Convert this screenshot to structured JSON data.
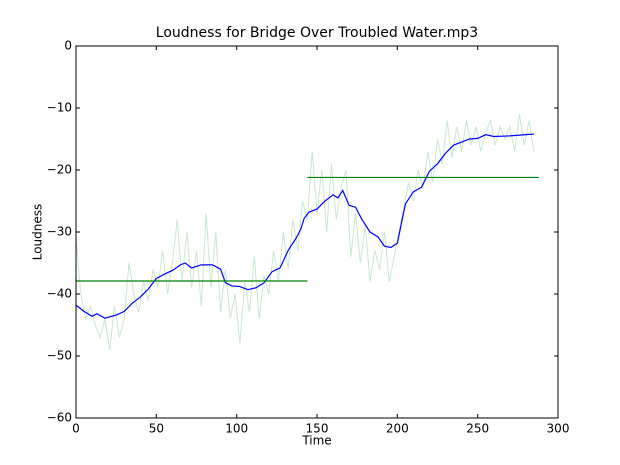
{
  "chart_data": {
    "type": "line",
    "title": "Loudness for Bridge Over Troubled Water.mp3",
    "x_label": "Time",
    "y_label": "Loudness",
    "xlim": [
      0,
      300
    ],
    "xticks": [
      0,
      50,
      100,
      150,
      200,
      250,
      300
    ],
    "ylim": [
      -60,
      0
    ],
    "yticks": [
      {
        "value": -60,
        "label": "−60"
      },
      {
        "value": -50,
        "label": "−50"
      },
      {
        "value": -40,
        "label": "−40"
      },
      {
        "value": -30,
        "label": "−30"
      },
      {
        "value": -20,
        "label": "−20"
      },
      {
        "value": -10,
        "label": "−10"
      },
      0
    ],
    "grid": false,
    "series": [
      {
        "color": "#c8e8cf",
        "x": [
          0,
          3,
          6,
          9,
          12,
          15,
          18,
          21,
          24,
          27,
          30,
          33,
          36,
          39,
          42,
          45,
          48,
          51,
          54,
          57,
          60,
          63,
          66,
          69,
          72,
          75,
          78,
          81,
          84,
          87,
          90,
          93,
          96,
          99,
          102,
          105,
          108,
          111,
          114,
          117,
          120,
          123,
          126,
          129,
          132,
          135,
          138,
          141,
          144,
          147,
          150,
          153,
          156,
          159,
          162,
          165,
          168,
          171,
          174,
          177,
          180,
          183,
          186,
          189,
          192,
          195,
          198,
          201,
          204,
          207,
          210,
          213,
          216,
          219,
          222,
          225,
          228,
          231,
          234,
          237,
          240,
          243,
          246,
          249,
          252,
          255,
          258,
          261,
          264,
          267,
          270,
          273,
          276,
          279,
          282,
          285
        ],
        "values": [
          -31,
          -40,
          -44,
          -42,
          -45,
          -47,
          -44,
          -49,
          -42,
          -47,
          -44,
          -35,
          -40,
          -43,
          -38,
          -41,
          -36,
          -39,
          -33,
          -40,
          -35,
          -28,
          -38,
          -30,
          -39,
          -33,
          -42,
          -27,
          -39,
          -30,
          -43,
          -36,
          -44,
          -40,
          -48,
          -38,
          -43,
          -34,
          -44,
          -37,
          -40,
          -33,
          -38,
          -30,
          -36,
          -28,
          -33,
          -25,
          -28,
          -17,
          -27,
          -20,
          -30,
          -19,
          -28,
          -23,
          -20,
          -34,
          -27,
          -35,
          -29,
          -38,
          -33,
          -36,
          -30,
          -38,
          -34,
          -30,
          -26,
          -22,
          -25,
          -20,
          -23,
          -17,
          -22,
          -15,
          -19,
          -12,
          -18,
          -13,
          -17,
          -12,
          -16,
          -13,
          -17,
          -14,
          -12,
          -16,
          -13,
          -15,
          -13,
          -17,
          -11,
          -16,
          -12,
          -17
        ]
      },
      {
        "color": "#0000ff",
        "x": [
          0,
          5,
          10,
          13,
          18,
          25,
          30,
          35,
          40,
          45,
          50,
          55,
          60,
          65,
          68,
          72,
          78,
          85,
          90,
          93,
          97,
          102,
          107,
          112,
          117,
          122,
          127,
          132,
          137,
          140,
          142,
          145,
          150,
          155,
          160,
          163,
          166,
          170,
          174,
          178,
          183,
          188,
          192,
          196,
          200,
          205,
          210,
          215,
          220,
          225,
          230,
          235,
          240,
          245,
          250,
          255,
          260,
          270,
          280,
          285
        ],
        "values": [
          -41.8,
          -42.8,
          -43.6,
          -43.2,
          -43.9,
          -43.4,
          -42.8,
          -41.5,
          -40.5,
          -39.2,
          -37.5,
          -36.8,
          -36.2,
          -35.3,
          -35,
          -35.8,
          -35.3,
          -35.3,
          -36,
          -38.2,
          -38.7,
          -38.8,
          -39.3,
          -39,
          -38.2,
          -36.4,
          -35.8,
          -33,
          -31,
          -29.5,
          -27.8,
          -26.8,
          -26.3,
          -25,
          -24,
          -24.5,
          -23.3,
          -25.7,
          -26,
          -28,
          -30,
          -30.8,
          -32.3,
          -32.5,
          -31.8,
          -25.5,
          -23.5,
          -22.8,
          -20.2,
          -19,
          -17.3,
          -16,
          -15.5,
          -15,
          -14.9,
          -14.3,
          -14.6,
          -14.5,
          -14.3,
          -14.2
        ]
      },
      {
        "color": "#008000",
        "x": [
          0,
          144,
          144,
          144,
          288
        ],
        "values": [
          -37.9,
          -37.9,
          null,
          -21.2,
          -21.2
        ]
      }
    ]
  }
}
